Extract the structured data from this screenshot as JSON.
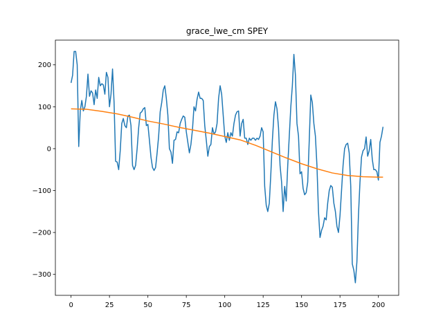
{
  "chart_data": {
    "type": "line",
    "title": "grace_lwe_cm SPEY",
    "xlim": [
      -10.2,
      213.2
    ],
    "ylim": [
      -350,
      259
    ],
    "xticks": [
      0,
      25,
      50,
      75,
      100,
      125,
      150,
      175,
      200
    ],
    "yticks": [
      {
        "value": -300,
        "label": "−300"
      },
      {
        "value": -200,
        "label": "−200"
      },
      {
        "value": -100,
        "label": "−100"
      },
      0,
      100,
      200
    ],
    "series": [
      {
        "color": "#1f77b4",
        "x": [
          0,
          1,
          2,
          3,
          4,
          5,
          6,
          7,
          8,
          9,
          10,
          11,
          12,
          13,
          14,
          15,
          16,
          17,
          18,
          19,
          20,
          21,
          22,
          23,
          24,
          25,
          26,
          27,
          28,
          29,
          30,
          31,
          32,
          33,
          34,
          35,
          36,
          37,
          38,
          39,
          40,
          41,
          42,
          43,
          44,
          45,
          46,
          47,
          48,
          49,
          50,
          51,
          52,
          53,
          54,
          55,
          56,
          57,
          58,
          59,
          60,
          61,
          62,
          63,
          64,
          65,
          66,
          67,
          68,
          69,
          70,
          71,
          72,
          73,
          74,
          75,
          76,
          77,
          78,
          79,
          80,
          81,
          82,
          83,
          84,
          85,
          86,
          87,
          88,
          89,
          90,
          91,
          92,
          93,
          94,
          95,
          96,
          97,
          98,
          99,
          100,
          101,
          102,
          103,
          104,
          105,
          106,
          107,
          108,
          109,
          110,
          111,
          112,
          113,
          114,
          115,
          116,
          117,
          118,
          119,
          120,
          121,
          122,
          123,
          124,
          125,
          126,
          127,
          128,
          129,
          130,
          131,
          132,
          133,
          134,
          135,
          136,
          137,
          138,
          139,
          140,
          141,
          142,
          143,
          144,
          145,
          146,
          147,
          148,
          149,
          150,
          151,
          152,
          153,
          154,
          155,
          156,
          157,
          158,
          159,
          160,
          161,
          162,
          163,
          164,
          165,
          166,
          167,
          168,
          169,
          170,
          171,
          172,
          173,
          174,
          175,
          176,
          177,
          178,
          179,
          180,
          181,
          182,
          183,
          184,
          185,
          186,
          187,
          188,
          189,
          190,
          191,
          192,
          193,
          194,
          195,
          196,
          197,
          198,
          199,
          200,
          201,
          202,
          203
        ],
        "values": [
          157,
          175,
          232,
          232,
          200,
          5,
          90,
          115,
          90,
          100,
          125,
          178,
          125,
          138,
          133,
          105,
          140,
          120,
          170,
          150,
          155,
          152,
          130,
          182,
          170,
          100,
          130,
          190,
          110,
          -30,
          -32,
          -50,
          -5,
          60,
          72,
          55,
          50,
          78,
          80,
          55,
          -40,
          -50,
          -40,
          0,
          50,
          85,
          88,
          95,
          98,
          55,
          58,
          20,
          -20,
          -45,
          -52,
          -45,
          -10,
          30,
          88,
          110,
          140,
          150,
          120,
          80,
          0,
          -8,
          -35,
          20,
          22,
          40,
          38,
          60,
          70,
          78,
          75,
          40,
          15,
          -10,
          10,
          45,
          100,
          90,
          118,
          135,
          120,
          120,
          115,
          55,
          20,
          -18,
          5,
          10,
          50,
          35,
          40,
          60,
          120,
          150,
          130,
          80,
          30,
          15,
          38,
          20,
          38,
          30,
          60,
          80,
          88,
          90,
          30,
          60,
          70,
          25,
          25,
          10,
          25,
          20,
          25,
          25,
          20,
          25,
          22,
          30,
          50,
          40,
          -90,
          -135,
          -150,
          -130,
          -60,
          20,
          80,
          112,
          95,
          50,
          -40,
          -80,
          -150,
          -90,
          -125,
          -40,
          30,
          100,
          150,
          225,
          175,
          60,
          30,
          -60,
          -55,
          -95,
          -110,
          -105,
          -80,
          20,
          128,
          110,
          60,
          30,
          -40,
          -150,
          -212,
          -195,
          -185,
          -165,
          -170,
          -130,
          -100,
          -88,
          -92,
          -130,
          -150,
          -185,
          -200,
          -160,
          -100,
          -40,
          0,
          10,
          13,
          -10,
          -90,
          -275,
          -290,
          -320,
          -270,
          -160,
          -80,
          -20,
          -5,
          0,
          28,
          -18,
          -5,
          22,
          -25,
          -50,
          -50,
          -55,
          -75,
          15,
          30,
          52
        ]
      },
      {
        "color": "#ff7f0e",
        "x": [
          0,
          10,
          20,
          30,
          40,
          50,
          60,
          70,
          80,
          90,
          100,
          110,
          120,
          130,
          140,
          150,
          160,
          170,
          180,
          190,
          200,
          203
        ],
        "values": [
          95,
          94,
          89,
          83,
          75,
          66,
          59,
          51,
          44,
          37,
          29,
          21,
          8,
          -7,
          -22,
          -36,
          -48,
          -58,
          -64,
          -67,
          -68,
          -68
        ]
      }
    ]
  }
}
